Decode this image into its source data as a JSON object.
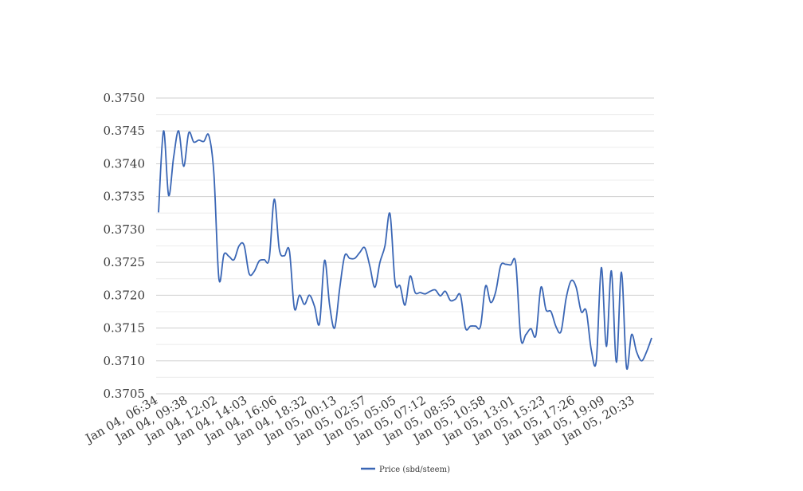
{
  "chart_data": {
    "type": "line",
    "title": "",
    "xlabel": "",
    "ylabel": "",
    "ylim": [
      0.3705,
      0.375
    ],
    "y_ticks": [
      "0.3750",
      "0.3745",
      "0.3740",
      "0.3735",
      "0.3730",
      "0.3725",
      "0.3720",
      "0.3715",
      "0.3710",
      "0.3705"
    ],
    "x_tick_labels": [
      "Jan 04, 06:34",
      "Jan 04, 09:38",
      "Jan 04, 12:02",
      "Jan 04, 14:03",
      "Jan 04, 16:06",
      "Jan 04, 18:32",
      "Jan 05, 00:13",
      "Jan 05, 02:57",
      "Jan 05, 05:05",
      "Jan 05, 07:12",
      "Jan 05, 08:55",
      "Jan 05, 10:58",
      "Jan 05, 13:01",
      "Jan 05, 15:23",
      "Jan 05, 17:26",
      "Jan 05, 19:09",
      "Jan 05, 20:33"
    ],
    "grid": true,
    "legend_position": "bottom",
    "series": [
      {
        "name": "Price (sbd/steem)",
        "color": "#3a66b5",
        "values": [
          0.37326,
          0.3745,
          0.37352,
          0.3741,
          0.3745,
          0.37396,
          0.37447,
          0.37433,
          0.37436,
          0.37434,
          0.37443,
          0.37385,
          0.37225,
          0.37262,
          0.37259,
          0.37254,
          0.37275,
          0.37276,
          0.37233,
          0.37236,
          0.37252,
          0.37254,
          0.37256,
          0.37346,
          0.3727,
          0.3726,
          0.37268,
          0.3718,
          0.372,
          0.37186,
          0.372,
          0.37183,
          0.37157,
          0.37253,
          0.37185,
          0.3715,
          0.3721,
          0.3726,
          0.37256,
          0.37256,
          0.37265,
          0.37272,
          0.37244,
          0.37212,
          0.3725,
          0.37275,
          0.37324,
          0.3722,
          0.37214,
          0.37185,
          0.37229,
          0.37204,
          0.37204,
          0.37202,
          0.37206,
          0.37208,
          0.37199,
          0.37206,
          0.37192,
          0.37194,
          0.372,
          0.3715,
          0.37153,
          0.37153,
          0.37153,
          0.37214,
          0.37189,
          0.37205,
          0.37245,
          0.37247,
          0.37246,
          0.37248,
          0.37134,
          0.3714,
          0.37149,
          0.37139,
          0.37212,
          0.37178,
          0.37175,
          0.37152,
          0.37145,
          0.37195,
          0.37222,
          0.37212,
          0.37175,
          0.37176,
          0.37117,
          0.371,
          0.37242,
          0.37122,
          0.37237,
          0.37098,
          0.37235,
          0.3709,
          0.3714,
          0.37114,
          0.371,
          0.37114,
          0.37135
        ]
      }
    ]
  }
}
